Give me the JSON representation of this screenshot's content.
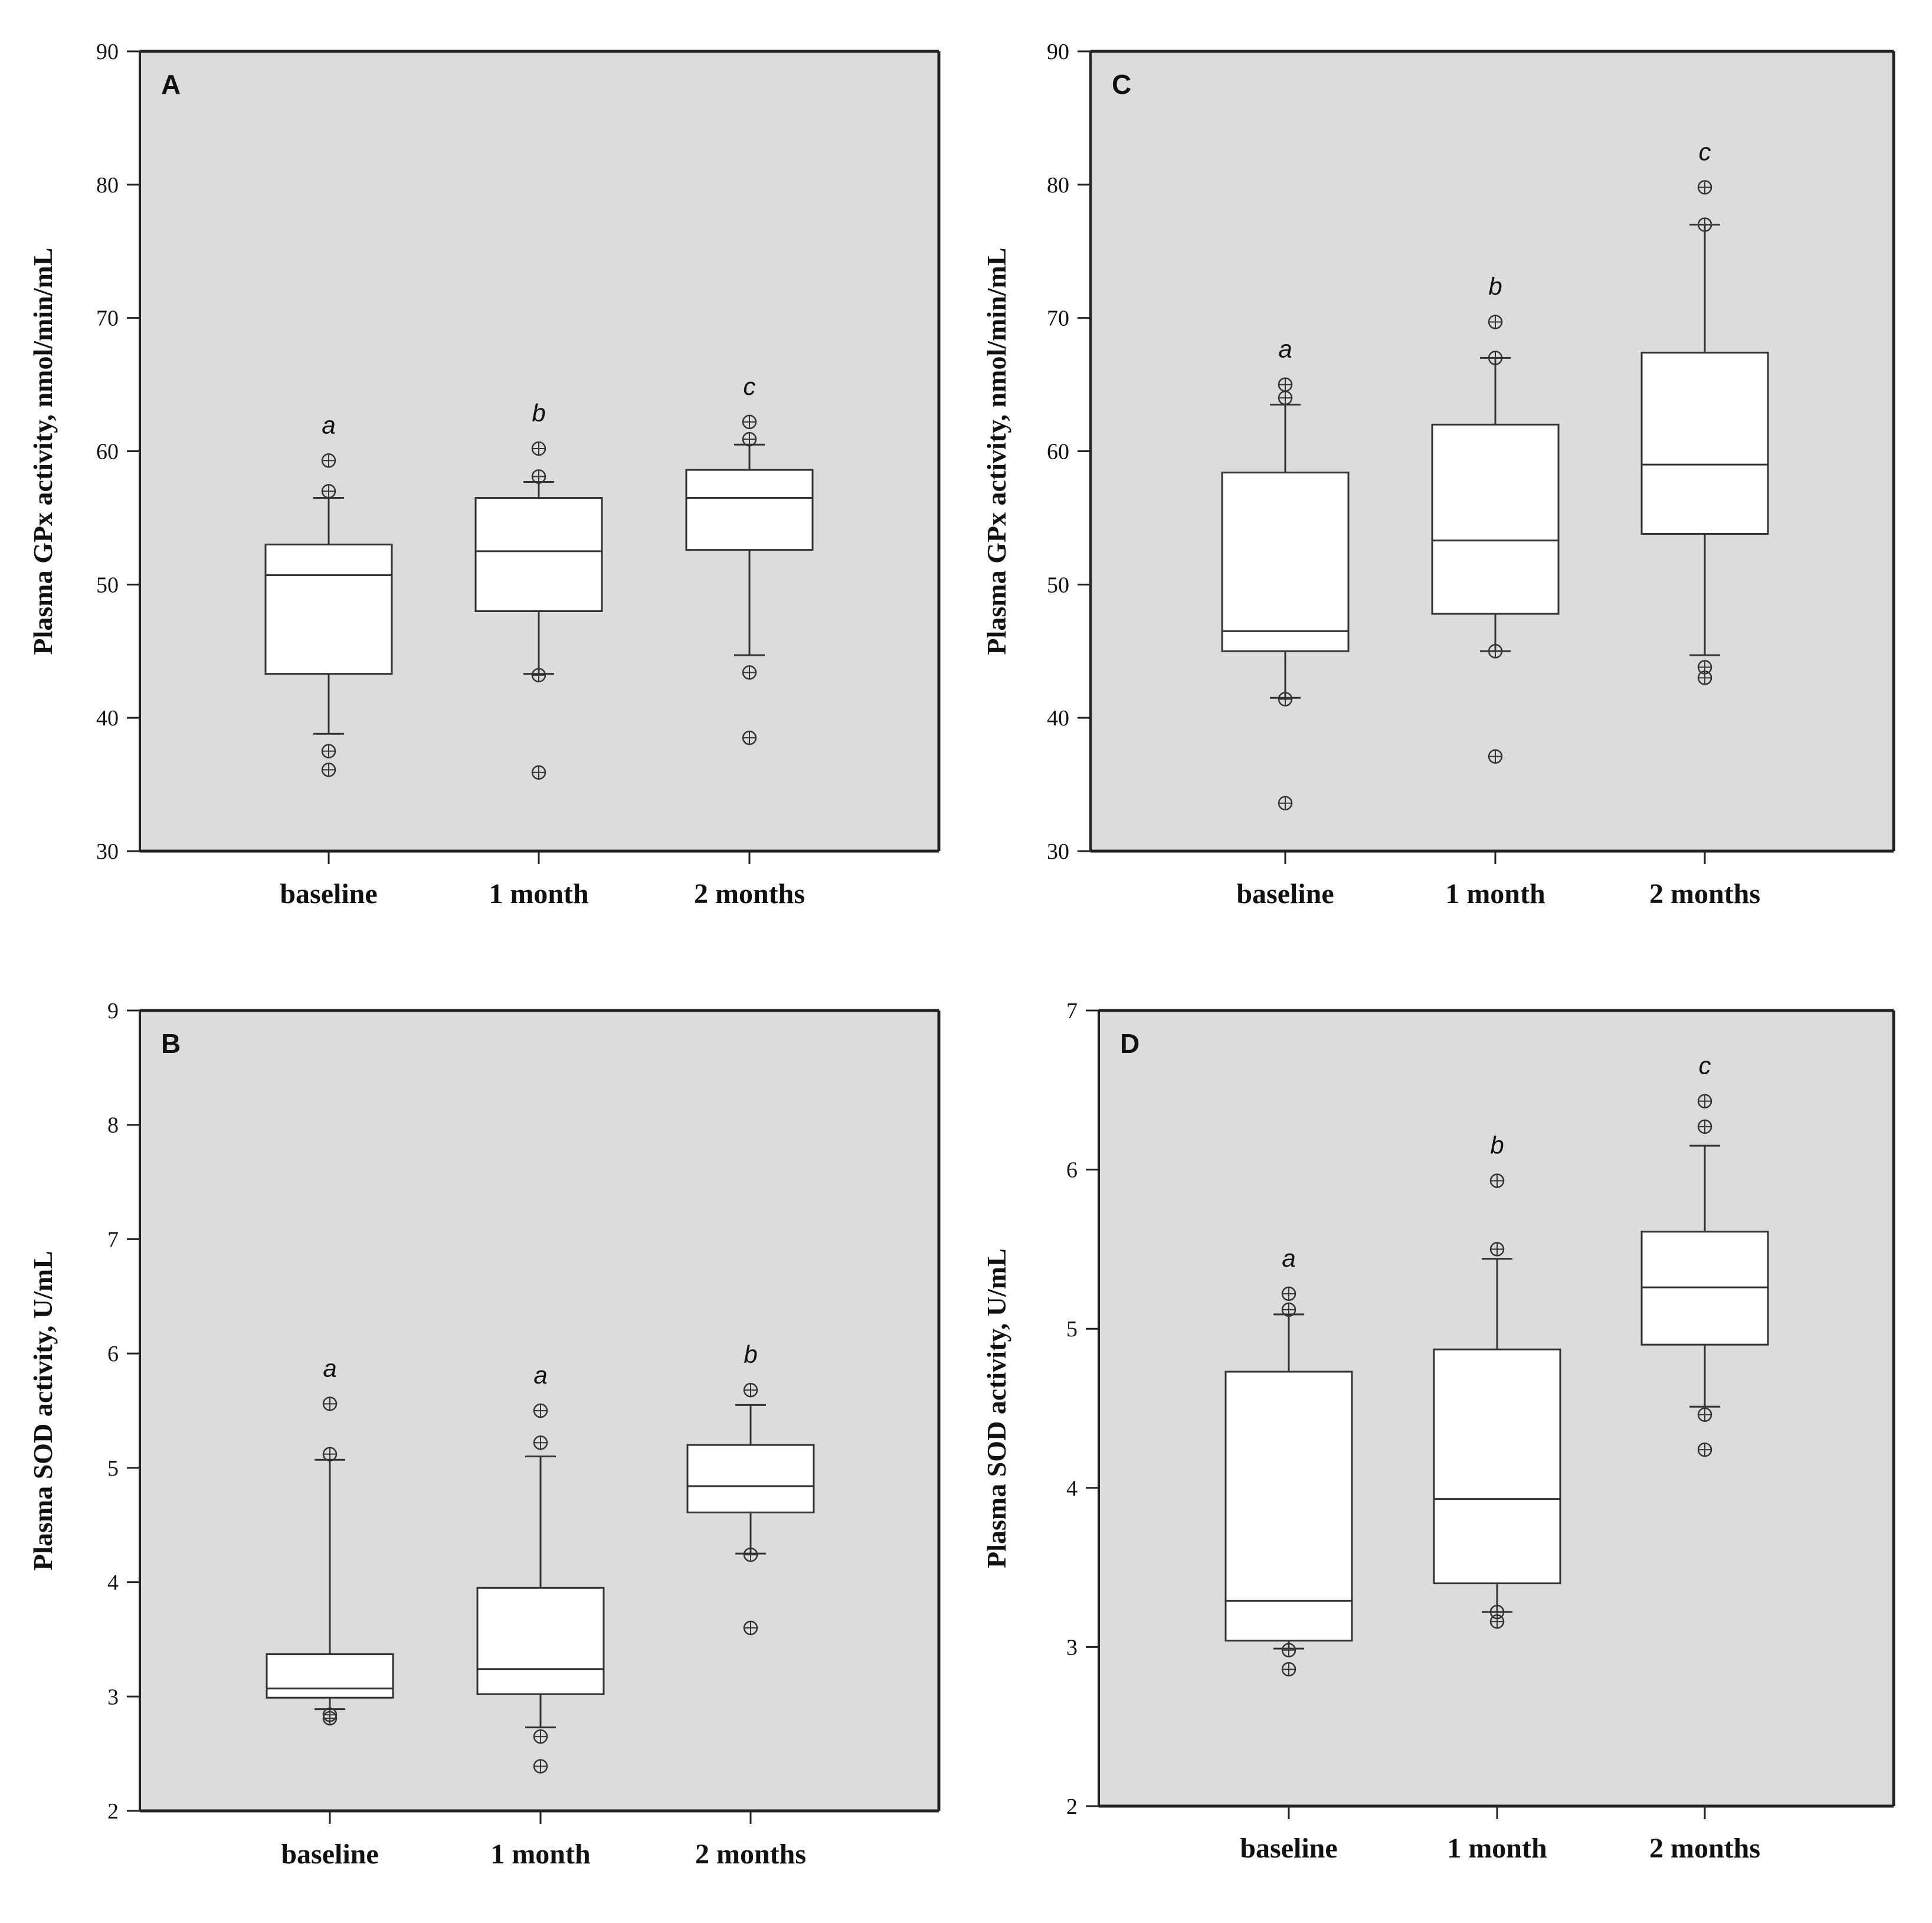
{
  "chart_data": [
    {
      "type": "boxplot",
      "panel": "A",
      "ylabel": "Plasma GPx activity, nmol/min/mL",
      "ylim": [
        30,
        90
      ],
      "yticks": [
        30,
        40,
        50,
        60,
        70,
        80,
        90
      ],
      "categories": [
        "baseline",
        "1 month",
        "2 months"
      ],
      "grid": false,
      "boxes": [
        {
          "category": "baseline",
          "q1": 43.3,
          "median": 50.7,
          "q3": 53.0,
          "whisker_low": 38.8,
          "whisker_high": 56.5,
          "outliers": [
            36.1,
            37.5,
            57.0,
            59.3
          ],
          "letter": "a"
        },
        {
          "category": "1 month",
          "q1": 48.0,
          "median": 52.5,
          "q3": 56.5,
          "whisker_low": 43.3,
          "whisker_high": 57.7,
          "outliers": [
            35.9,
            43.2,
            58.1,
            60.2
          ],
          "letter": "b"
        },
        {
          "category": "2 months",
          "q1": 52.6,
          "median": 56.5,
          "q3": 58.6,
          "whisker_low": 44.7,
          "whisker_high": 60.5,
          "outliers": [
            38.5,
            43.4,
            60.9,
            62.2
          ],
          "letter": "c"
        }
      ]
    },
    {
      "type": "boxplot",
      "panel": "C",
      "ylabel": "Plasma GPx activity, nmol/min/mL",
      "ylim": [
        30,
        90
      ],
      "yticks": [
        30,
        40,
        50,
        60,
        70,
        80,
        90
      ],
      "categories": [
        "baseline",
        "1 month",
        "2 months"
      ],
      "grid": false,
      "boxes": [
        {
          "category": "baseline",
          "q1": 45.0,
          "median": 46.5,
          "q3": 58.4,
          "whisker_low": 41.5,
          "whisker_high": 63.5,
          "outliers": [
            33.6,
            41.4,
            64.0,
            65.0
          ],
          "letter": "a"
        },
        {
          "category": "1 month",
          "q1": 47.8,
          "median": 53.3,
          "q3": 62.0,
          "whisker_low": 45.0,
          "whisker_high": 67.0,
          "outliers": [
            37.1,
            45.0,
            67.0,
            69.7
          ],
          "letter": "b"
        },
        {
          "category": "2 months",
          "q1": 53.8,
          "median": 59.0,
          "q3": 67.4,
          "whisker_low": 44.7,
          "whisker_high": 77.0,
          "outliers": [
            43.0,
            43.8,
            77.0,
            79.8
          ],
          "letter": "c"
        }
      ]
    },
    {
      "type": "boxplot",
      "panel": "B",
      "ylabel": "Plasma SOD activity, U/mL",
      "ylim": [
        2,
        9
      ],
      "yticks": [
        2,
        3,
        4,
        5,
        6,
        7,
        8,
        9
      ],
      "categories": [
        "baseline",
        "1 month",
        "2 months"
      ],
      "grid": false,
      "boxes": [
        {
          "category": "baseline",
          "q1": 2.99,
          "median": 3.07,
          "q3": 3.37,
          "whisker_low": 2.89,
          "whisker_high": 5.07,
          "outliers": [
            2.81,
            2.84,
            5.12,
            5.56
          ],
          "letter": "a"
        },
        {
          "category": "1 month",
          "q1": 3.02,
          "median": 3.24,
          "q3": 3.95,
          "whisker_low": 2.73,
          "whisker_high": 5.1,
          "outliers": [
            2.39,
            2.65,
            5.22,
            5.5
          ],
          "letter": "a"
        },
        {
          "category": "2 months",
          "q1": 4.61,
          "median": 4.84,
          "q3": 5.2,
          "whisker_low": 4.25,
          "whisker_high": 5.55,
          "outliers": [
            3.6,
            4.24,
            5.68
          ],
          "letter": "b"
        }
      ]
    },
    {
      "type": "boxplot",
      "panel": "D",
      "ylabel": "Plasma SOD activity, U/mL",
      "ylim": [
        2,
        7
      ],
      "yticks": [
        2,
        3,
        4,
        5,
        6,
        7
      ],
      "categories": [
        "baseline",
        "1 month",
        "2 months"
      ],
      "grid": false,
      "boxes": [
        {
          "category": "baseline",
          "q1": 3.04,
          "median": 3.29,
          "q3": 4.73,
          "whisker_low": 2.99,
          "whisker_high": 5.09,
          "outliers": [
            2.86,
            2.98,
            5.12,
            5.22
          ],
          "letter": "a"
        },
        {
          "category": "1 month",
          "q1": 3.4,
          "median": 3.93,
          "q3": 4.87,
          "whisker_low": 3.22,
          "whisker_high": 5.44,
          "outliers": [
            3.16,
            3.22,
            5.5,
            5.93
          ],
          "letter": "b"
        },
        {
          "category": "2 months",
          "q1": 4.9,
          "median": 5.26,
          "q3": 5.61,
          "whisker_low": 4.51,
          "whisker_high": 6.15,
          "outliers": [
            4.24,
            4.46,
            6.27,
            6.43
          ],
          "letter": "c"
        }
      ]
    }
  ]
}
